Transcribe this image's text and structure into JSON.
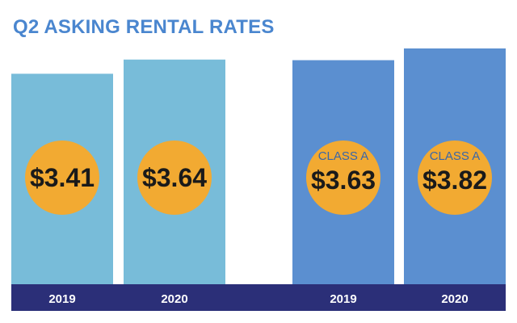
{
  "chart_data": {
    "type": "bar",
    "title": "Q2 ASKING RENTAL RATES",
    "categories": [
      "2019",
      "2020",
      "2019",
      "2020"
    ],
    "values": [
      3.41,
      3.64,
      3.63,
      3.82
    ],
    "value_labels": [
      "$3.41",
      "$3.64",
      "$3.63",
      "$3.82"
    ],
    "bar_tags": [
      "",
      "",
      "CLASS A",
      "CLASS A"
    ],
    "group_colors": [
      "#78bcd9",
      "#78bcd9",
      "#5b8fd0",
      "#5b8fd0"
    ],
    "ylim": [
      0,
      4
    ],
    "grid": false,
    "legend": "none"
  },
  "colors": {
    "title": "#4a86cf",
    "circle": "#f2aa32",
    "value_text": "#1a1a1a",
    "tag_text": "#3a66a8",
    "axis_band": "#2b2f78",
    "axis_text": "#ffffff"
  }
}
